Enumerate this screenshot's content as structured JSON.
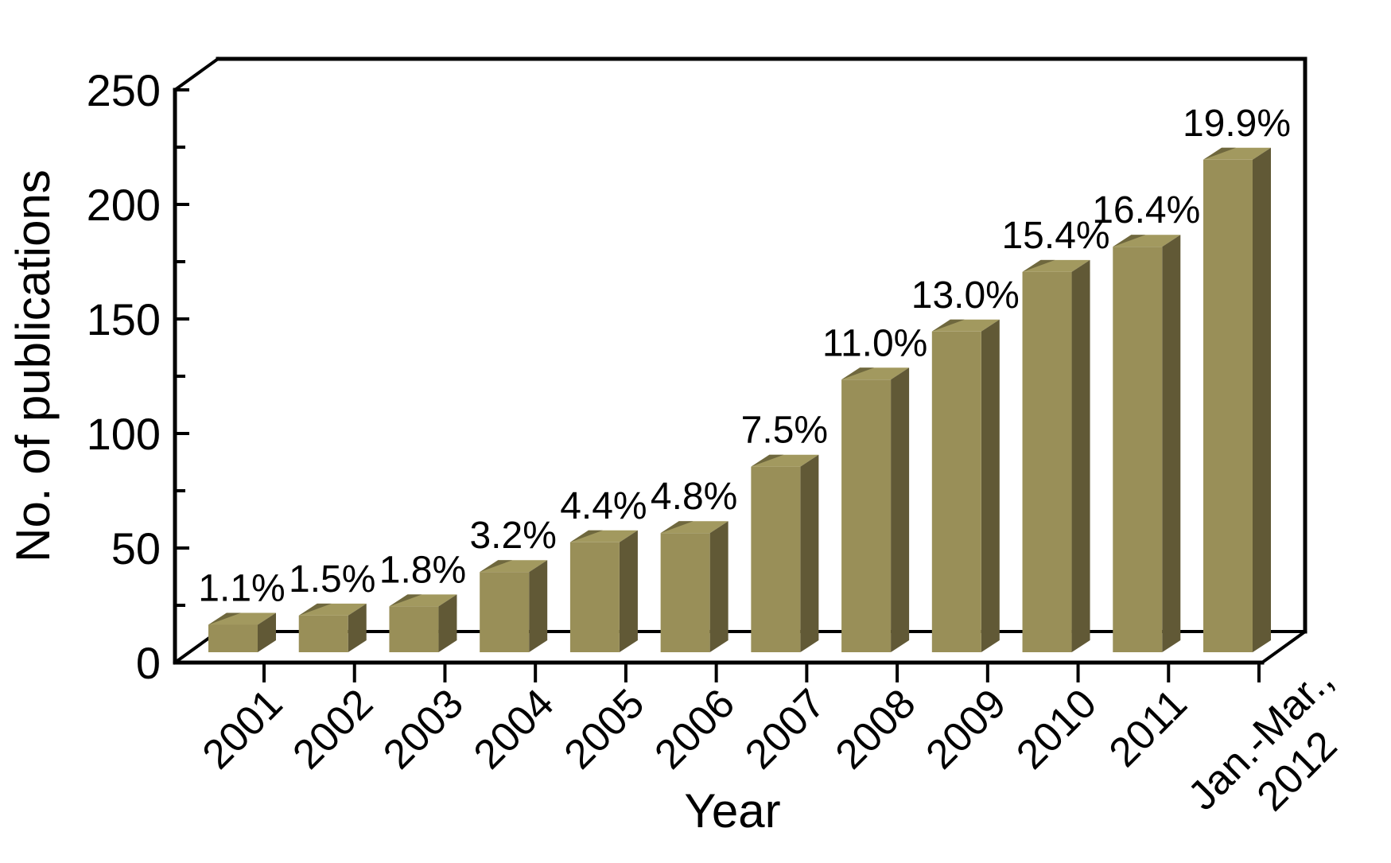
{
  "figure": {
    "background": "#ffffff",
    "axis_color": "#000000",
    "text_color": "#000000"
  },
  "chart_data": {
    "type": "bar",
    "style": "3d-column",
    "title": "",
    "xlabel": "Year",
    "ylabel": "No. of publications",
    "categories": [
      "2001",
      "2002",
      "2003",
      "2004",
      "2005",
      "2006",
      "2007",
      "2008",
      "2009",
      "2010",
      "2011",
      "Jan.-Mar., 2012"
    ],
    "x_tick_label_lines": [
      [
        "2001"
      ],
      [
        "2002"
      ],
      [
        "2003"
      ],
      [
        "2004"
      ],
      [
        "2005"
      ],
      [
        "2006"
      ],
      [
        "2007"
      ],
      [
        "2008"
      ],
      [
        "2009"
      ],
      [
        "2010"
      ],
      [
        "2011"
      ],
      [
        "Jan.-Mar.,",
        "2012"
      ]
    ],
    "bar_labels": [
      "1.1%",
      "1.5%",
      "1.8%",
      "3.2%",
      "4.4%",
      "4.8%",
      "7.5%",
      "11.0%",
      "13.0%",
      "15.4%",
      "16.4%",
      "19.9%"
    ],
    "percent_values": [
      1.1,
      1.5,
      1.8,
      3.2,
      4.4,
      4.8,
      7.5,
      11.0,
      13.0,
      15.4,
      16.4,
      19.9
    ],
    "values_publications_est": [
      12,
      16,
      20,
      35,
      48,
      52,
      81,
      119,
      140,
      166,
      177,
      215
    ],
    "ylim": [
      0,
      250
    ],
    "y_major_ticks": [
      0,
      50,
      100,
      150,
      200,
      250
    ],
    "y_minor_ticks": [
      25,
      75,
      125,
      175,
      225
    ],
    "grid": false,
    "legend": null,
    "bar_colors": {
      "front": "#998f58",
      "top": "#a2995f",
      "side": "#615936",
      "top_bevel": "#6f683e"
    }
  }
}
